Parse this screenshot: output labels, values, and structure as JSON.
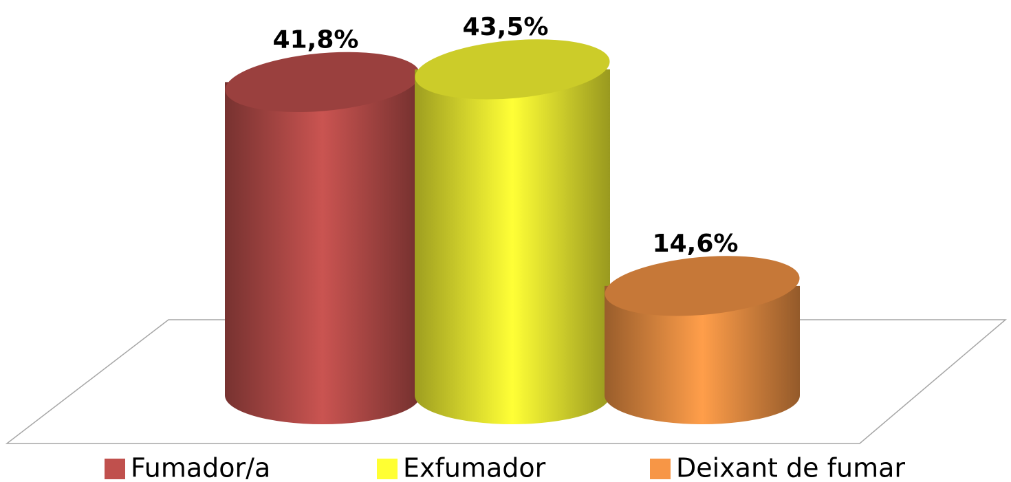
{
  "chart_data": {
    "type": "bar3d",
    "series": [
      {
        "name": "Fumador/a",
        "color": "#c0504d",
        "values": [
          41.8
        ],
        "value_labels": [
          "41,8%"
        ]
      },
      {
        "name": "Exfumador",
        "color": "#ffff33",
        "values": [
          43.5
        ],
        "value_labels": [
          "43,5%"
        ]
      },
      {
        "name": "Deixant de fumar",
        "color": "#f79646",
        "values": [
          14.6
        ],
        "value_labels": [
          "14,6%"
        ]
      }
    ]
  }
}
